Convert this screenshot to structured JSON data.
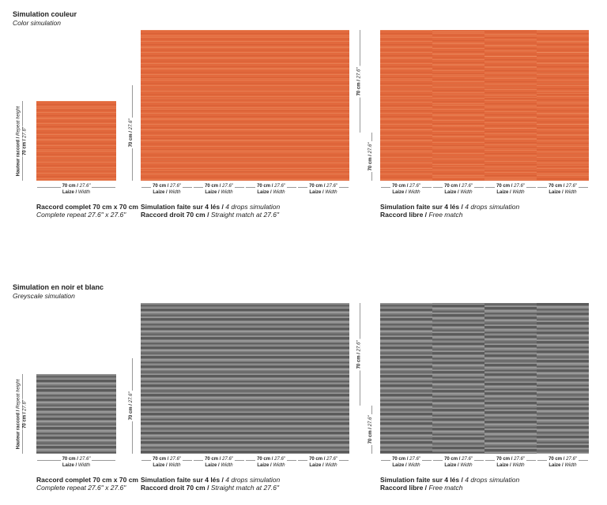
{
  "labels": {
    "cm": "70 cm /",
    "inch": "27.6\"",
    "laize": "Laize /",
    "width": "Width",
    "hauteur": "Hauteur raccord /",
    "repeat": "Repeat height"
  },
  "sections": [
    {
      "title": "Simulation couleur",
      "subtitle": "Color simulation",
      "panels": [
        {
          "lines": [
            {
              "fr": "Raccord complet 70 cm x 70 cm"
            },
            {
              "en": "Complete repeat 27.6\" x 27.6\""
            }
          ]
        },
        {
          "lines": [
            {
              "fr": "Simulation faite sur 4 lés /",
              "en": "4 drops simulation"
            },
            {
              "fr": "Raccord droit 70 cm /",
              "en": "Straight match at 27.6\""
            }
          ]
        },
        {
          "lines": [
            {
              "fr": "Simulation faite sur 4 lés /",
              "en": "4 drops simulation"
            },
            {
              "fr": "Raccord libre /",
              "en": "Free match"
            }
          ]
        }
      ]
    },
    {
      "title": "Simulation en noir et blanc",
      "subtitle": "Greyscale simulation",
      "panels": [
        {
          "lines": [
            {
              "fr": "Raccord complet 70 cm x 70 cm"
            },
            {
              "en": "Complete repeat 27.6\" x 27.6\""
            }
          ]
        },
        {
          "lines": [
            {
              "fr": "Simulation faite sur 4 lés /",
              "en": "4 drops simulation"
            },
            {
              "fr": "Raccord droit 70 cm /",
              "en": "Straight match at 27.6\""
            }
          ]
        },
        {
          "lines": [
            {
              "fr": "Simulation faite sur 4 lés /",
              "en": "4 drops simulation"
            },
            {
              "fr": "Raccord libre /",
              "en": "Free match"
            }
          ]
        }
      ]
    }
  ]
}
